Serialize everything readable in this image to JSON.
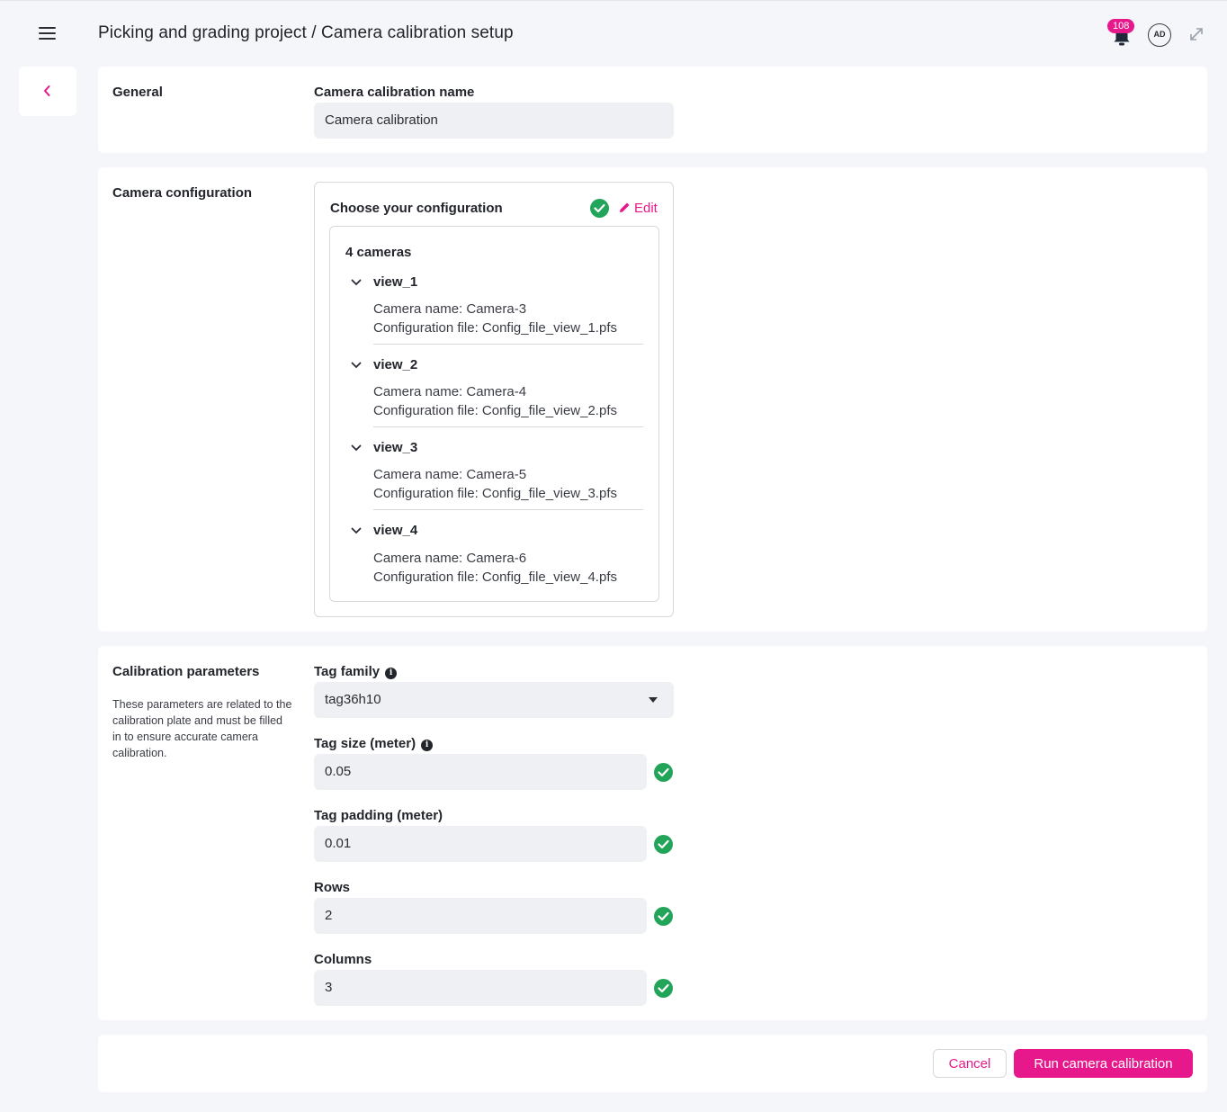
{
  "header": {
    "title": "Picking and grading project / Camera calibration setup",
    "notification_count": "108",
    "avatar_initials": "AD",
    "icons": [
      "menu-icon",
      "bell-icon",
      "expand-icon"
    ]
  },
  "general": {
    "section_label": "General",
    "name_label": "Camera calibration name",
    "name_value": "Camera calibration"
  },
  "camera_config": {
    "section_label": "Camera configuration",
    "box_title": "Choose your configuration",
    "edit_label": "Edit",
    "cameras_count": "4 cameras",
    "views": [
      {
        "name": "view_1",
        "camera": "Camera name: Camera-3",
        "file": "Configuration file: Config_file_view_1.pfs"
      },
      {
        "name": "view_2",
        "camera": "Camera name: Camera-4",
        "file": "Configuration file: Config_file_view_2.pfs"
      },
      {
        "name": "view_3",
        "camera": "Camera name: Camera-5",
        "file": "Configuration file: Config_file_view_3.pfs"
      },
      {
        "name": "view_4",
        "camera": "Camera name: Camera-6",
        "file": "Configuration file: Config_file_view_4.pfs"
      }
    ]
  },
  "calibration": {
    "section_label": "Calibration parameters",
    "description": "These parameters are related to the calibration plate and must be filled in to ensure accurate camera calibration.",
    "tag_family_label": "Tag family",
    "tag_family_value": "tag36h10",
    "tag_size_label": "Tag size (meter)",
    "tag_size_value": "0.05",
    "tag_padding_label": "Tag padding (meter)",
    "tag_padding_value": "0.01",
    "rows_label": "Rows",
    "rows_value": "2",
    "columns_label": "Columns",
    "columns_value": "3"
  },
  "footer": {
    "cancel_label": "Cancel",
    "run_label": "Run camera calibration"
  },
  "colors": {
    "accent": "#e6188b",
    "success": "#22a55a",
    "background": "#f5f6f9",
    "input_bg": "#eff0f3"
  }
}
